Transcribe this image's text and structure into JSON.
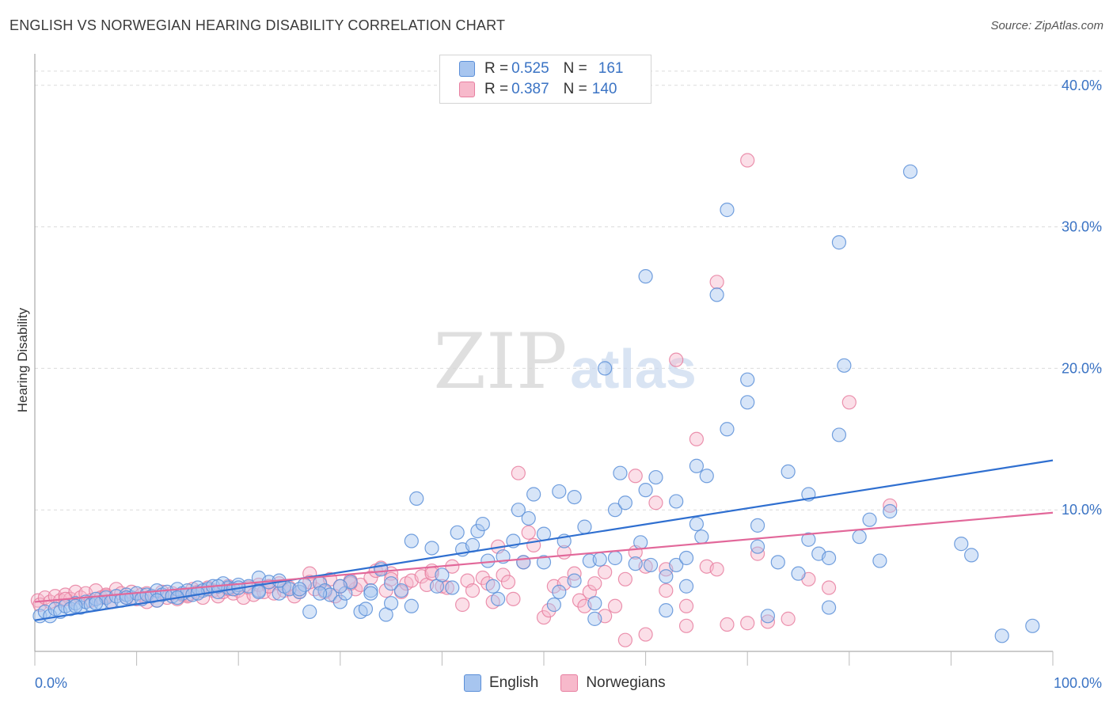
{
  "header": {
    "title": "ENGLISH VS NORWEGIAN HEARING DISABILITY CORRELATION CHART",
    "source": "Source: ZipAtlas.com"
  },
  "watermark": {
    "zip": "ZIP",
    "atlas": "atlas"
  },
  "legend": {
    "rows": [
      {
        "r_label": "R = ",
        "r_value": "0.525",
        "n_label": "N = ",
        "n_value": "161",
        "color": "#a7c5ef",
        "stroke": "#5b8fd8"
      },
      {
        "r_label": "R = ",
        "r_value": "0.387",
        "n_label": "N = ",
        "n_value": "140",
        "color": "#f7b9cb",
        "stroke": "#e77fa0"
      }
    ]
  },
  "chart_data": {
    "type": "scatter",
    "title": "ENGLISH VS NORWEGIAN HEARING DISABILITY CORRELATION CHART",
    "xlabel": "",
    "ylabel": "Hearing Disability",
    "xlim": [
      0,
      100
    ],
    "ylim": [
      0,
      42
    ],
    "x_tick_labels": [
      "0.0%",
      "100.0%"
    ],
    "y_ticks": [
      10,
      20,
      30,
      40
    ],
    "y_tick_labels": [
      "10.0%",
      "20.0%",
      "30.0%",
      "40.0%"
    ],
    "grid": true,
    "legend_position": "top-center",
    "series": [
      {
        "name": "English",
        "color": "#a7c5ef",
        "stroke": "#5b8fd8",
        "line_color": "#2f6fd0",
        "trend": [
          [
            0,
            2.2
          ],
          [
            100,
            13.5
          ]
        ],
        "points": [
          [
            0.5,
            2.5
          ],
          [
            1,
            2.8
          ],
          [
            1.5,
            2.5
          ],
          [
            2,
            3
          ],
          [
            2.5,
            2.8
          ],
          [
            3,
            3.2
          ],
          [
            3.5,
            3
          ],
          [
            4,
            3.4
          ],
          [
            4.5,
            3.1
          ],
          [
            5,
            3.5
          ],
          [
            5.5,
            3.3
          ],
          [
            6,
            3.7
          ],
          [
            6.5,
            3.4
          ],
          [
            7,
            3.8
          ],
          [
            7.5,
            3.5
          ],
          [
            8,
            3.9
          ],
          [
            8.5,
            3.6
          ],
          [
            9,
            4
          ],
          [
            9.5,
            3.8
          ],
          [
            10,
            4.1
          ],
          [
            10.5,
            3.7
          ],
          [
            11,
            4
          ],
          [
            11.5,
            3.9
          ],
          [
            12,
            4.3
          ],
          [
            12.5,
            4
          ],
          [
            13,
            4.2
          ],
          [
            13.5,
            3.9
          ],
          [
            14,
            4.4
          ],
          [
            14.5,
            4.1
          ],
          [
            15,
            4.3
          ],
          [
            15.5,
            4
          ],
          [
            16,
            4.5
          ],
          [
            16.5,
            4.3
          ],
          [
            17,
            4.4
          ],
          [
            17.5,
            4.6
          ],
          [
            18,
            4.2
          ],
          [
            18.5,
            4.8
          ],
          [
            19,
            4.5
          ],
          [
            19.5,
            4.4
          ],
          [
            20,
            4.7
          ],
          [
            21,
            4.6
          ],
          [
            22,
            4.3
          ],
          [
            22,
            5.2
          ],
          [
            23,
            4.9
          ],
          [
            24,
            4.1
          ],
          [
            24.5,
            4.6
          ],
          [
            25,
            4.4
          ],
          [
            26,
            4.2
          ],
          [
            26.5,
            4.7
          ],
          [
            27,
            2.8
          ],
          [
            28,
            4.8
          ],
          [
            28.5,
            4.3
          ],
          [
            29,
            4
          ],
          [
            30,
            3.5
          ],
          [
            30.5,
            4.1
          ],
          [
            31,
            4.9
          ],
          [
            32,
            2.8
          ],
          [
            32.5,
            3
          ],
          [
            33,
            4.3
          ],
          [
            34,
            5.8
          ],
          [
            34.5,
            2.6
          ],
          [
            35,
            3.4
          ],
          [
            36,
            4.3
          ],
          [
            37,
            3.2
          ],
          [
            37,
            7.8
          ],
          [
            37.5,
            10.8
          ],
          [
            39,
            7.3
          ],
          [
            39.5,
            4.6
          ],
          [
            40,
            5.4
          ],
          [
            41,
            4.5
          ],
          [
            41.5,
            8.4
          ],
          [
            42,
            7.2
          ],
          [
            43,
            7.5
          ],
          [
            43.5,
            8.5
          ],
          [
            44,
            9
          ],
          [
            44.5,
            6.4
          ],
          [
            45,
            4.6
          ],
          [
            45.5,
            3.7
          ],
          [
            46,
            6.7
          ],
          [
            47,
            7.8
          ],
          [
            47.5,
            10
          ],
          [
            48,
            6.3
          ],
          [
            48.5,
            9.4
          ],
          [
            49,
            11.1
          ],
          [
            50,
            8.3
          ],
          [
            50,
            6.3
          ],
          [
            51,
            3.3
          ],
          [
            51.5,
            4.2
          ],
          [
            51.5,
            11.3
          ],
          [
            52,
            7.8
          ],
          [
            53,
            10.9
          ],
          [
            53,
            5
          ],
          [
            54,
            8.8
          ],
          [
            54.5,
            6.4
          ],
          [
            55,
            2.3
          ],
          [
            55,
            3.4
          ],
          [
            55.5,
            6.5
          ],
          [
            56,
            20
          ],
          [
            57,
            6.6
          ],
          [
            57,
            10
          ],
          [
            57.5,
            12.6
          ],
          [
            58,
            10.5
          ],
          [
            59,
            6.2
          ],
          [
            59.5,
            7.7
          ],
          [
            60,
            26.5
          ],
          [
            60,
            11.4
          ],
          [
            60.5,
            6.1
          ],
          [
            61,
            12.3
          ],
          [
            62,
            5.3
          ],
          [
            62,
            2.9
          ],
          [
            63,
            6.1
          ],
          [
            63,
            10.6
          ],
          [
            64,
            6.6
          ],
          [
            64,
            4.6
          ],
          [
            65,
            13.1
          ],
          [
            65,
            9
          ],
          [
            65.5,
            8.1
          ],
          [
            66,
            12.4
          ],
          [
            67,
            25.2
          ],
          [
            68,
            15.7
          ],
          [
            68,
            31.2
          ],
          [
            70,
            19.2
          ],
          [
            70,
            17.6
          ],
          [
            71,
            7.4
          ],
          [
            71,
            8.9
          ],
          [
            72,
            2.5
          ],
          [
            73,
            6.3
          ],
          [
            74,
            12.7
          ],
          [
            75,
            5.5
          ],
          [
            76,
            11.1
          ],
          [
            76,
            7.9
          ],
          [
            77,
            6.9
          ],
          [
            78,
            3.1
          ],
          [
            78,
            6.6
          ],
          [
            79,
            28.9
          ],
          [
            79,
            15.3
          ],
          [
            79.5,
            20.2
          ],
          [
            81,
            8.1
          ],
          [
            82,
            9.3
          ],
          [
            83,
            6.4
          ],
          [
            84,
            9.9
          ],
          [
            86,
            33.9
          ],
          [
            91,
            7.6
          ],
          [
            92,
            6.8
          ],
          [
            95,
            1.1
          ],
          [
            98,
            1.8
          ],
          [
            4,
            3.2
          ],
          [
            6,
            3.4
          ],
          [
            9,
            3.8
          ],
          [
            12,
            3.6
          ],
          [
            14,
            3.8
          ],
          [
            16,
            4.1
          ],
          [
            18,
            4.6
          ],
          [
            20,
            4.5
          ],
          [
            22,
            4.2
          ],
          [
            24,
            5
          ],
          [
            26,
            4.4
          ],
          [
            28,
            4.1
          ],
          [
            30,
            4.6
          ],
          [
            33,
            4.1
          ],
          [
            35,
            4.8
          ]
        ]
      },
      {
        "name": "Norwegians",
        "color": "#f7b9cb",
        "stroke": "#e77fa0",
        "line_color": "#e2689a",
        "trend": [
          [
            0,
            3.5
          ],
          [
            100,
            9.8
          ]
        ],
        "points": [
          [
            0.3,
            3.6
          ],
          [
            0.5,
            3.3
          ],
          [
            1,
            3.8
          ],
          [
            1.5,
            3.5
          ],
          [
            2,
            3.9
          ],
          [
            2.5,
            3.6
          ],
          [
            3,
            4
          ],
          [
            3.5,
            3.7
          ],
          [
            4,
            4.2
          ],
          [
            4.5,
            3.8
          ],
          [
            5,
            4.1
          ],
          [
            5.5,
            3.6
          ],
          [
            6,
            4.3
          ],
          [
            6.5,
            3.8
          ],
          [
            7,
            4
          ],
          [
            7.5,
            3.5
          ],
          [
            8,
            4.4
          ],
          [
            8.5,
            4.1
          ],
          [
            9,
            3.8
          ],
          [
            9.5,
            4.2
          ],
          [
            10,
            3.7
          ],
          [
            10.5,
            4
          ],
          [
            11,
            3.5
          ],
          [
            11.5,
            3.9
          ],
          [
            12,
            3.6
          ],
          [
            12.5,
            4.2
          ],
          [
            13,
            3.8
          ],
          [
            13.5,
            4.1
          ],
          [
            14,
            3.7
          ],
          [
            14.5,
            4
          ],
          [
            15,
            3.9
          ],
          [
            15.5,
            4.4
          ],
          [
            16,
            4.2
          ],
          [
            16.5,
            3.8
          ],
          [
            17,
            4.5
          ],
          [
            17.5,
            4.3
          ],
          [
            18,
            3.9
          ],
          [
            18.5,
            4.2
          ],
          [
            19,
            4.6
          ],
          [
            19.5,
            4.1
          ],
          [
            20,
            4.3
          ],
          [
            20.5,
            3.8
          ],
          [
            21,
            4.5
          ],
          [
            21.5,
            4
          ],
          [
            22,
            4.7
          ],
          [
            22.5,
            4.2
          ],
          [
            23,
            4.6
          ],
          [
            23.5,
            4.1
          ],
          [
            24,
            4.8
          ],
          [
            24.5,
            4.3
          ],
          [
            25,
            4.5
          ],
          [
            25.5,
            3.9
          ],
          [
            26,
            4.2
          ],
          [
            27,
            5.5
          ],
          [
            27.5,
            4.4
          ],
          [
            28,
            4.9
          ],
          [
            28.5,
            4.2
          ],
          [
            29,
            5.1
          ],
          [
            29.5,
            3.9
          ],
          [
            30,
            4.6
          ],
          [
            31,
            5
          ],
          [
            31.5,
            4.4
          ],
          [
            32,
            4.7
          ],
          [
            33,
            5.2
          ],
          [
            33.5,
            5.7
          ],
          [
            34,
            5.9
          ],
          [
            34.5,
            4.3
          ],
          [
            35,
            5.5
          ],
          [
            36,
            4.2
          ],
          [
            36.5,
            4.8
          ],
          [
            37,
            5
          ],
          [
            38,
            5.3
          ],
          [
            38.5,
            4.7
          ],
          [
            39,
            5.7
          ],
          [
            40,
            4.6
          ],
          [
            40.5,
            4.5
          ],
          [
            41,
            6
          ],
          [
            42,
            3.3
          ],
          [
            42.5,
            5
          ],
          [
            43,
            4.3
          ],
          [
            44,
            5.2
          ],
          [
            44.5,
            4.8
          ],
          [
            45,
            3.5
          ],
          [
            45.5,
            7.4
          ],
          [
            46,
            5.4
          ],
          [
            46.5,
            4.9
          ],
          [
            47,
            3.7
          ],
          [
            47.5,
            12.6
          ],
          [
            48,
            6.3
          ],
          [
            48.5,
            8.4
          ],
          [
            49,
            7.5
          ],
          [
            50,
            2.4
          ],
          [
            50.5,
            2.9
          ],
          [
            51,
            4.6
          ],
          [
            52,
            4.8
          ],
          [
            52,
            7
          ],
          [
            53,
            5.5
          ],
          [
            53.5,
            3.6
          ],
          [
            54,
            3.2
          ],
          [
            54.5,
            4.2
          ],
          [
            55,
            4.8
          ],
          [
            56,
            5.6
          ],
          [
            56,
            2.5
          ],
          [
            57,
            3.2
          ],
          [
            58,
            5.1
          ],
          [
            58,
            0.8
          ],
          [
            59,
            12.4
          ],
          [
            59,
            7
          ],
          [
            60,
            1.2
          ],
          [
            60,
            6
          ],
          [
            61,
            10.5
          ],
          [
            62,
            5.8
          ],
          [
            62,
            4.3
          ],
          [
            63,
            20.6
          ],
          [
            64,
            3.2
          ],
          [
            64,
            1.8
          ],
          [
            65,
            15
          ],
          [
            66,
            6
          ],
          [
            67,
            26.1
          ],
          [
            67,
            5.8
          ],
          [
            68,
            1.9
          ],
          [
            70,
            2
          ],
          [
            70,
            34.7
          ],
          [
            71,
            6.9
          ],
          [
            72,
            2.1
          ],
          [
            74,
            2.3
          ],
          [
            76,
            5.1
          ],
          [
            78,
            4.5
          ],
          [
            80,
            17.6
          ],
          [
            84,
            10.3
          ],
          [
            3,
            3.7
          ],
          [
            7,
            3.9
          ],
          [
            11,
            4.1
          ],
          [
            15,
            4
          ],
          [
            19,
            4.4
          ],
          [
            23,
            4.6
          ],
          [
            27,
            4.9
          ],
          [
            31,
            4.8
          ],
          [
            35,
            5.1
          ],
          [
            39,
            5.5
          ]
        ]
      }
    ]
  }
}
